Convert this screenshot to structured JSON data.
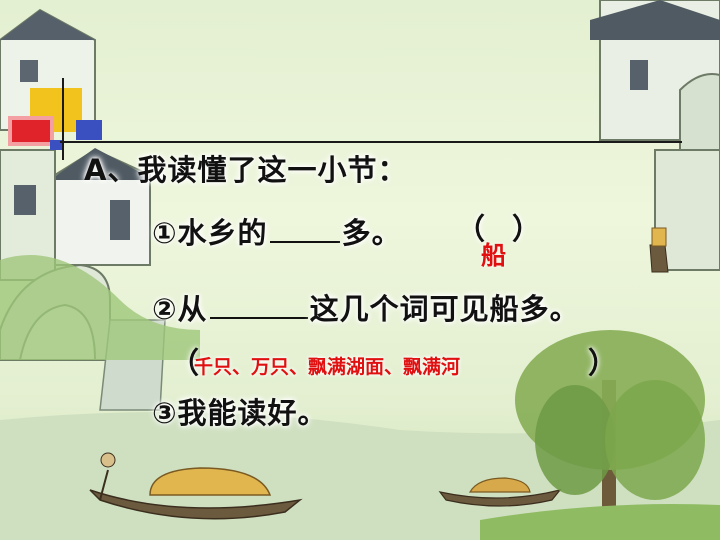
{
  "slide": {
    "heading": "A、我读懂了这一小节：",
    "q1": {
      "prefix": "①水乡的",
      "suffix": "多。",
      "open_paren": "（",
      "close_paren": "）",
      "answer": "船"
    },
    "q2": {
      "prefix": "②从",
      "suffix": "这几个词可见船多。",
      "open_paren": "（",
      "close_paren": "）",
      "answer": "千只、万只、飘满湖面、飘满河"
    },
    "q3": {
      "text": "③我能读好。"
    }
  },
  "colors": {
    "answer": "#e01010",
    "text": "#111111",
    "bg": "#e8f2d6",
    "deco_yellow": "#f2c31c",
    "deco_red": "#e0222a",
    "deco_blue": "#3a4fc0"
  }
}
